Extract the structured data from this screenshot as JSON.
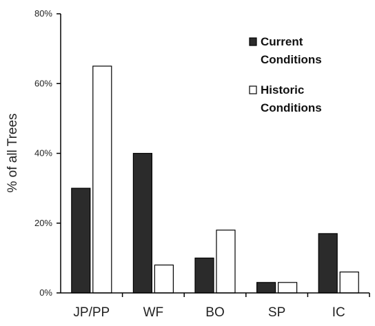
{
  "chart_data": {
    "type": "bar",
    "title": "",
    "xlabel": "",
    "ylabel": "% of all Trees",
    "categories": [
      "JP/PP",
      "WF",
      "BO",
      "SP",
      "IC"
    ],
    "series": [
      {
        "name": "Current Conditions",
        "values": [
          30,
          40,
          10,
          3,
          17
        ],
        "color": "#2b2b2b"
      },
      {
        "name": "Historic Conditions",
        "values": [
          65,
          8,
          18,
          3,
          6
        ],
        "color": "#ffffff"
      }
    ],
    "ylim": [
      0,
      80
    ],
    "y_ticks": [
      0,
      20,
      40,
      60,
      80
    ],
    "y_tick_labels": [
      "0%",
      "20%",
      "40%",
      "60%",
      "80%"
    ],
    "grid": false,
    "legend_position": "top-right",
    "legend": [
      {
        "lines": [
          "Current",
          "Conditions"
        ]
      },
      {
        "lines": [
          "Historic",
          "Conditions"
        ]
      }
    ]
  }
}
